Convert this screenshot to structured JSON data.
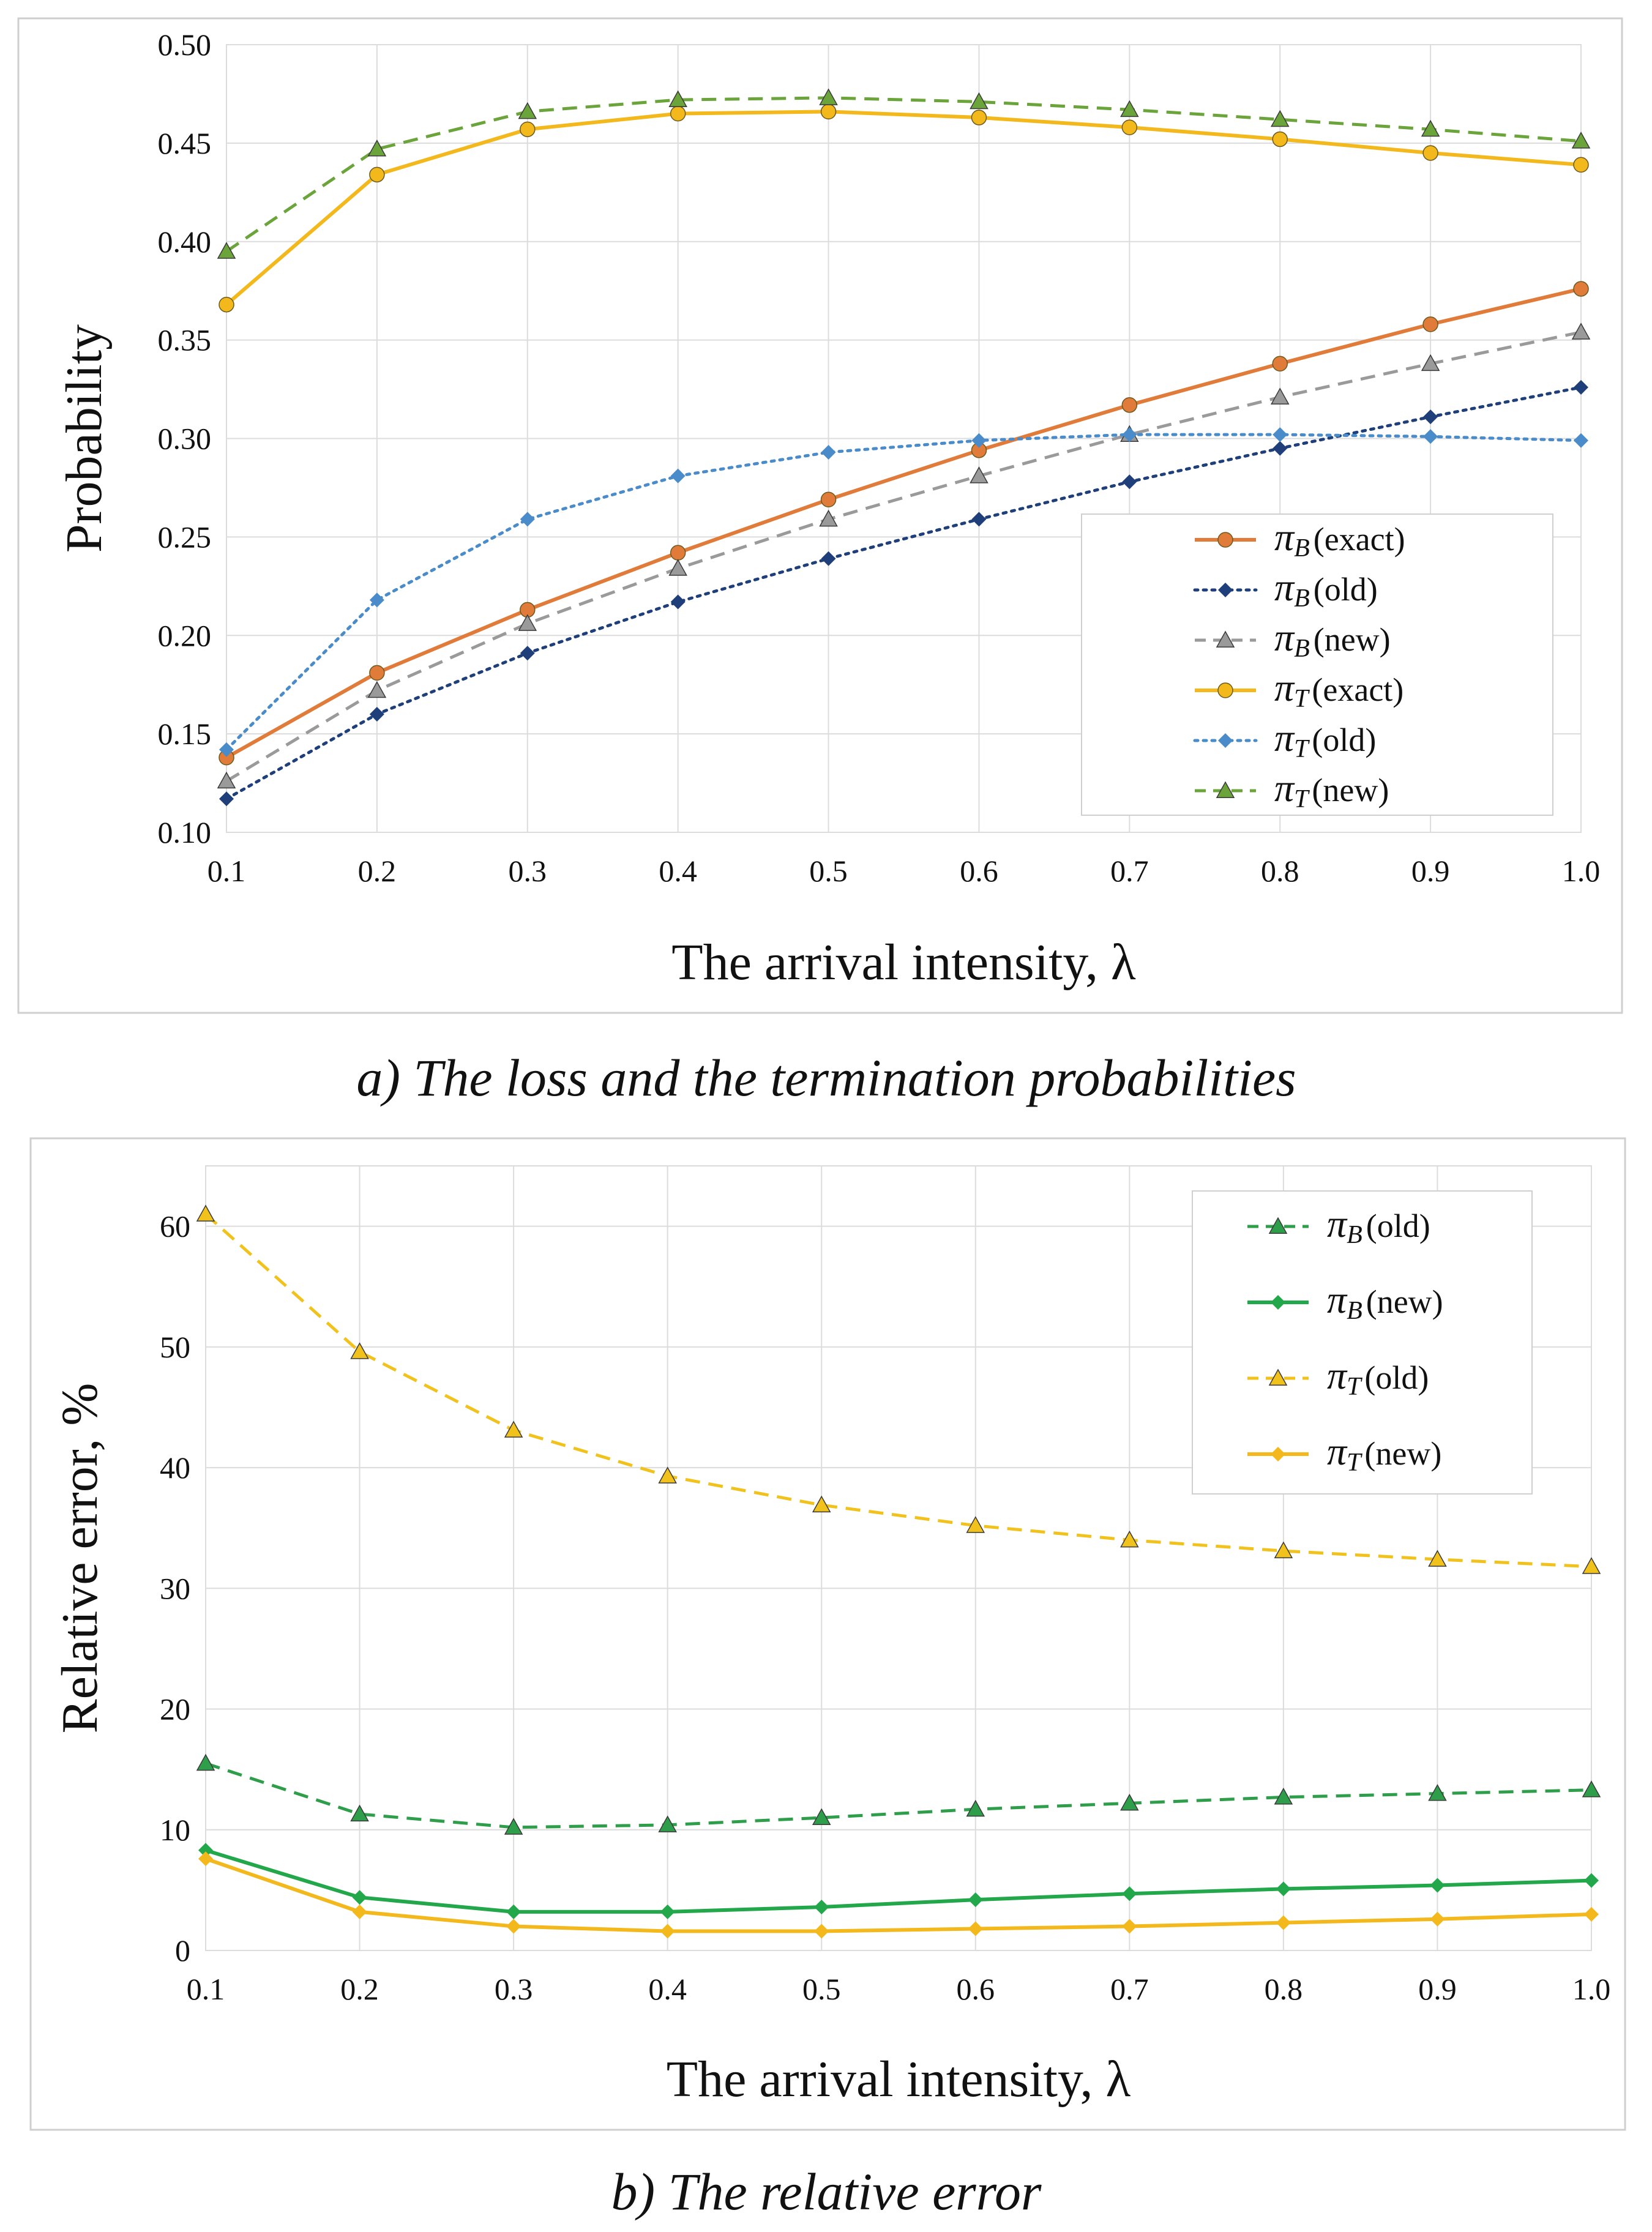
{
  "captions": {
    "a": "a) The loss and the termination probabilities",
    "b": "b) The relative error"
  },
  "chart_data": [
    {
      "type": "line",
      "title": "",
      "xlabel": "The arrival intensity, λ",
      "ylabel": "Probability",
      "xlim": [
        0.1,
        1.0
      ],
      "ylim": [
        0.1,
        0.5
      ],
      "x": [
        0.1,
        0.2,
        0.3,
        0.4,
        0.5,
        0.6,
        0.7,
        0.8,
        0.9,
        1.0
      ],
      "x_ticks": [
        "0.1",
        "0.2",
        "0.3",
        "0.4",
        "0.5",
        "0.6",
        "0.7",
        "0.8",
        "0.9",
        "1.0"
      ],
      "y_ticks": [
        "0.10",
        "0.15",
        "0.20",
        "0.25",
        "0.30",
        "0.35",
        "0.40",
        "0.45",
        "0.50"
      ],
      "grid": true,
      "legend_position": "bottom-right",
      "series": [
        {
          "symbol": "π",
          "sub": "B",
          "tag": "(exact)",
          "color": "#E07B39",
          "dash": "solid",
          "marker": "circle",
          "values": [
            0.138,
            0.181,
            0.213,
            0.242,
            0.269,
            0.294,
            0.317,
            0.338,
            0.358,
            0.376
          ]
        },
        {
          "symbol": "π",
          "sub": "B",
          "tag": "(old)",
          "color": "#1F3F7A",
          "dash": "dotted",
          "marker": "diamond",
          "values": [
            0.117,
            0.16,
            0.191,
            0.217,
            0.239,
            0.259,
            0.278,
            0.295,
            0.311,
            0.326
          ]
        },
        {
          "symbol": "π",
          "sub": "B",
          "tag": "(new)",
          "color": "#9A9A9A",
          "dash": "dashed",
          "marker": "triangle",
          "values": [
            0.126,
            0.172,
            0.206,
            0.234,
            0.259,
            0.281,
            0.302,
            0.321,
            0.338,
            0.354
          ]
        },
        {
          "symbol": "π",
          "sub": "T",
          "tag": "(exact)",
          "color": "#F2B81C",
          "dash": "solid",
          "marker": "circle",
          "values": [
            0.368,
            0.434,
            0.457,
            0.465,
            0.466,
            0.463,
            0.458,
            0.452,
            0.445,
            0.439
          ]
        },
        {
          "symbol": "π",
          "sub": "T",
          "tag": "(old)",
          "color": "#4A8BC9",
          "dash": "dotted",
          "marker": "diamond",
          "values": [
            0.142,
            0.218,
            0.259,
            0.281,
            0.293,
            0.299,
            0.302,
            0.302,
            0.301,
            0.299
          ]
        },
        {
          "symbol": "π",
          "sub": "T",
          "tag": "(new)",
          "color": "#6BA43A",
          "dash": "dashed",
          "marker": "triangle",
          "values": [
            0.395,
            0.447,
            0.466,
            0.472,
            0.473,
            0.471,
            0.467,
            0.462,
            0.457,
            0.451
          ]
        }
      ]
    },
    {
      "type": "line",
      "title": "",
      "xlabel": "The arrival intensity, λ",
      "ylabel": "Relative error, %",
      "xlim": [
        0.1,
        1.0
      ],
      "ylim": [
        0,
        65
      ],
      "x": [
        0.1,
        0.2,
        0.3,
        0.4,
        0.5,
        0.6,
        0.7,
        0.8,
        0.9,
        1.0
      ],
      "x_ticks": [
        "0.1",
        "0.2",
        "0.3",
        "0.4",
        "0.5",
        "0.6",
        "0.7",
        "0.8",
        "0.9",
        "1.0"
      ],
      "y_ticks": [
        "0",
        "10",
        "20",
        "30",
        "40",
        "50",
        "60"
      ],
      "y_tick_values": [
        0,
        10,
        20,
        30,
        40,
        50,
        60
      ],
      "grid": true,
      "legend_position": "top-right",
      "series": [
        {
          "symbol": "π",
          "sub": "B",
          "tag": "(old)",
          "color": "#2E9E4A",
          "dash": "dashed",
          "marker": "triangle",
          "values": [
            15.5,
            11.3,
            10.2,
            10.4,
            11.0,
            11.7,
            12.2,
            12.7,
            13.0,
            13.3
          ]
        },
        {
          "symbol": "π",
          "sub": "B",
          "tag": "(new)",
          "color": "#22A84A",
          "dash": "solid",
          "marker": "diamond",
          "values": [
            8.3,
            4.4,
            3.2,
            3.2,
            3.6,
            4.2,
            4.7,
            5.1,
            5.4,
            5.8
          ]
        },
        {
          "symbol": "π",
          "sub": "T",
          "tag": "(old)",
          "color": "#F2C21C",
          "dash": "dashed",
          "marker": "triangle",
          "values": [
            61.0,
            49.6,
            43.1,
            39.3,
            36.9,
            35.2,
            34.0,
            33.1,
            32.4,
            31.8
          ]
        },
        {
          "symbol": "π",
          "sub": "T",
          "tag": "(new)",
          "color": "#F2B81C",
          "dash": "solid",
          "marker": "diamond",
          "values": [
            7.6,
            3.2,
            2.0,
            1.6,
            1.6,
            1.8,
            2.0,
            2.3,
            2.6,
            3.0
          ]
        }
      ]
    }
  ]
}
